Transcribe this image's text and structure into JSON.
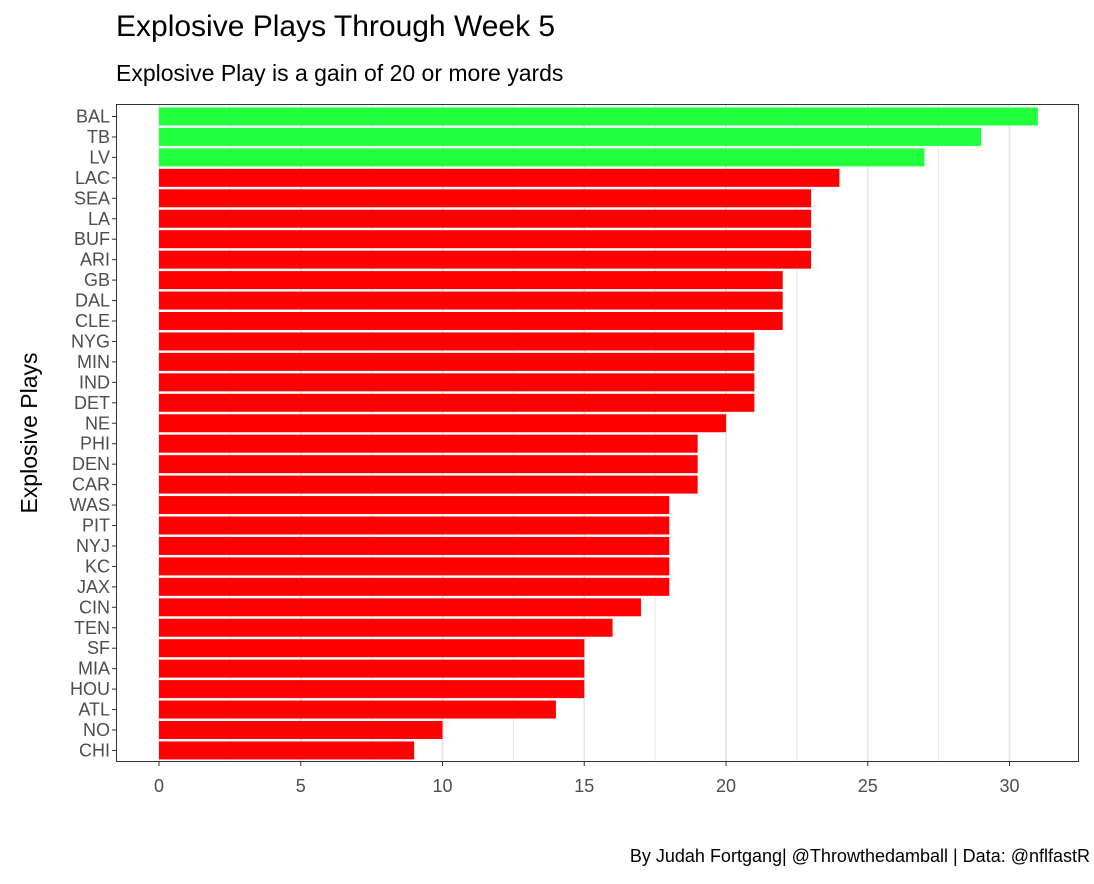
{
  "title": "Explosive Plays Through Week 5",
  "subtitle": "Explosive Play is a gain of 20 or more yards",
  "caption": "By Judah Fortgang| @Throwthedamball | Data: @nflfastR",
  "colors": {
    "high": "#22ff3c",
    "low": "#ff0000",
    "grid": "#e3e3e3",
    "border": "#333333",
    "tick_text": "#4d4d4d"
  },
  "chart_data": {
    "type": "bar",
    "orientation": "horizontal",
    "ylabel": "Explosive Plays",
    "xlabel": "",
    "xlim": [
      0,
      31
    ],
    "xticks": [
      0,
      5,
      10,
      15,
      20,
      25,
      30
    ],
    "grid": true,
    "legend": "none",
    "categories": [
      "BAL",
      "TB",
      "LV",
      "LAC",
      "SEA",
      "LA",
      "BUF",
      "ARI",
      "GB",
      "DAL",
      "CLE",
      "NYG",
      "MIN",
      "IND",
      "DET",
      "NE",
      "PHI",
      "DEN",
      "CAR",
      "WAS",
      "PIT",
      "NYJ",
      "KC",
      "JAX",
      "CIN",
      "TEN",
      "SF",
      "MIA",
      "HOU",
      "ATL",
      "NO",
      "CHI"
    ],
    "values": [
      31,
      29,
      27,
      24,
      23,
      23,
      23,
      23,
      22,
      22,
      22,
      21,
      21,
      21,
      21,
      20,
      19,
      19,
      19,
      18,
      18,
      18,
      18,
      18,
      17,
      16,
      15,
      15,
      15,
      14,
      10,
      9
    ],
    "bar_colors": [
      "high",
      "high",
      "high",
      "low",
      "low",
      "low",
      "low",
      "low",
      "low",
      "low",
      "low",
      "low",
      "low",
      "low",
      "low",
      "low",
      "low",
      "low",
      "low",
      "low",
      "low",
      "low",
      "low",
      "low",
      "low",
      "low",
      "low",
      "low",
      "low",
      "low",
      "low",
      "low"
    ]
  }
}
